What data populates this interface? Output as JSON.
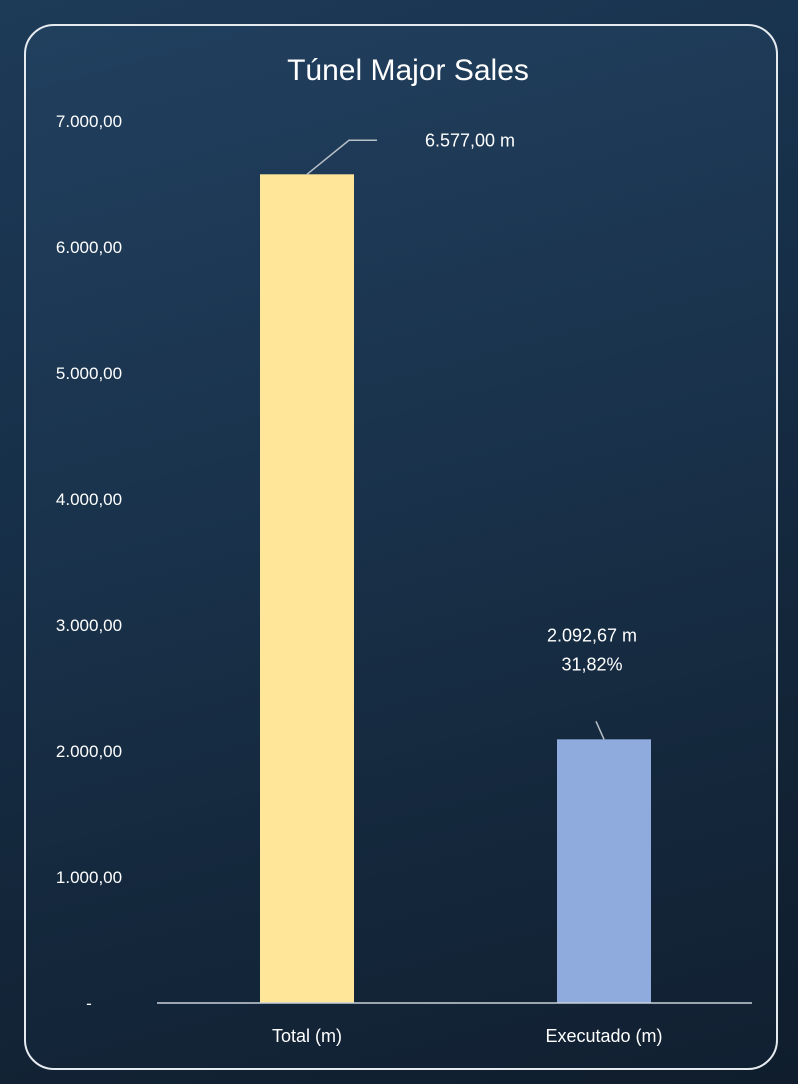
{
  "chart_data": {
    "type": "bar",
    "title": "Túnel Major Sales",
    "categories": [
      "Total (m)",
      "Executado (m)"
    ],
    "values": [
      6577.0,
      2092.67
    ],
    "data_labels": [
      [
        "6.577,00 m"
      ],
      [
        "2.092,67 m",
        "31,82%"
      ]
    ],
    "bar_colors": [
      "#ffe699",
      "#8faadc"
    ],
    "ylim": [
      0,
      7000
    ],
    "yticks": [
      {
        "value": 0,
        "label": "-"
      },
      {
        "value": 1000,
        "label": "1.000,00"
      },
      {
        "value": 2000,
        "label": "2.000,00"
      },
      {
        "value": 3000,
        "label": "3.000,00"
      },
      {
        "value": 4000,
        "label": "4.000,00"
      },
      {
        "value": 5000,
        "label": "5.000,00"
      },
      {
        "value": 6000,
        "label": "6.000,00"
      },
      {
        "value": 7000,
        "label": "7.000,00"
      }
    ],
    "xlabel": "",
    "ylabel": "",
    "grid": false,
    "legend": "none"
  }
}
